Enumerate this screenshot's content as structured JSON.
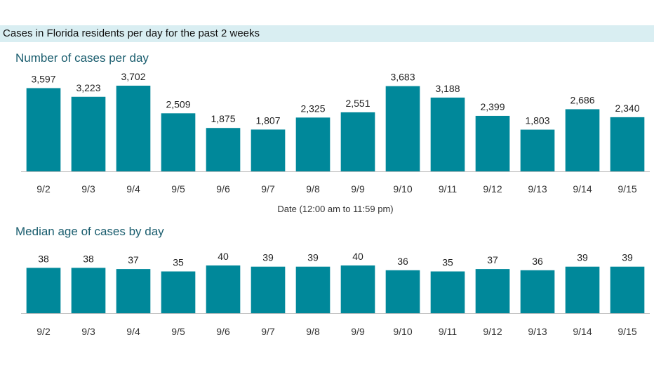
{
  "header": {
    "title": "Cases in Florida residents per day for the past 2 weeks"
  },
  "chart_data": [
    {
      "type": "bar",
      "title": "Number of cases per day",
      "xlabel": "Date (12:00 am to 11:59 pm)",
      "ylabel": "",
      "categories": [
        "9/2",
        "9/3",
        "9/4",
        "9/5",
        "9/6",
        "9/7",
        "9/8",
        "9/9",
        "9/10",
        "9/11",
        "9/12",
        "9/13",
        "9/14",
        "9/15"
      ],
      "values": [
        3597,
        3223,
        3702,
        2509,
        1875,
        1807,
        2325,
        2551,
        3683,
        3188,
        2399,
        1803,
        2686,
        2340
      ],
      "value_labels": [
        "3,597",
        "3,223",
        "3,702",
        "2,509",
        "1,875",
        "1,807",
        "2,325",
        "2,551",
        "3,683",
        "3,188",
        "2,399",
        "1,803",
        "2,686",
        "2,340"
      ],
      "ylim": [
        0,
        3702
      ],
      "grid": false,
      "color": "#00889a"
    },
    {
      "type": "bar",
      "title": "Median age of cases by day",
      "xlabel": "",
      "ylabel": "",
      "categories": [
        "9/2",
        "9/3",
        "9/4",
        "9/5",
        "9/6",
        "9/7",
        "9/8",
        "9/9",
        "9/10",
        "9/11",
        "9/12",
        "9/13",
        "9/14",
        "9/15"
      ],
      "values": [
        38,
        38,
        37,
        35,
        40,
        39,
        39,
        40,
        36,
        35,
        37,
        36,
        39,
        39
      ],
      "value_labels": [
        "38",
        "38",
        "37",
        "35",
        "40",
        "39",
        "39",
        "40",
        "36",
        "35",
        "37",
        "36",
        "39",
        "39"
      ],
      "ylim": [
        0,
        40
      ],
      "grid": false,
      "color": "#00889a"
    }
  ]
}
